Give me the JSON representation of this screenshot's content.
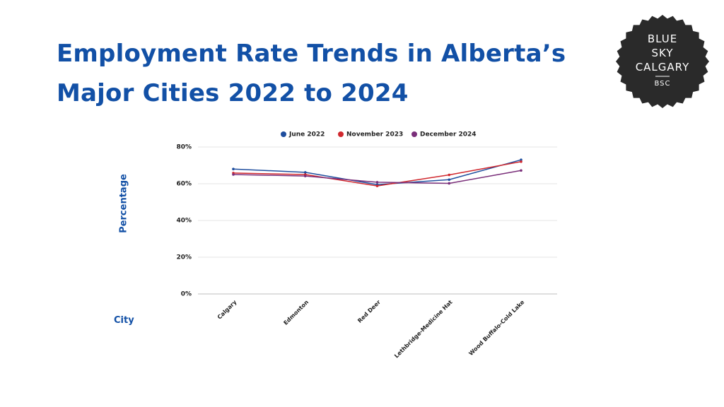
{
  "page": {
    "title": "Employment Rate Trends in Alberta’s\nMajor Cities 2022 to 2024"
  },
  "logo": {
    "line1": "BLUE",
    "line2": "SKY",
    "line3": "CALGARY",
    "line4": "BSC",
    "background_color": "#2a2a2a",
    "text_color": "#ffffff"
  },
  "colors": {
    "title": "#1250a6",
    "axis_title": "#1250a6",
    "grid": "#e6e6e6",
    "axis_line": "#bfbfbf"
  },
  "chart_data": {
    "type": "line",
    "title": "",
    "xlabel": "City",
    "ylabel": "Percentage",
    "categories": [
      "Calgary",
      "Edmonton",
      "Red Deer",
      "Lethbridge-Medicine Hat",
      "Wood Buffalo-Cold Lake"
    ],
    "yticks": [
      "0%",
      "20%",
      "40%",
      "60%",
      "80%"
    ],
    "ylim": [
      0,
      80
    ],
    "grid": true,
    "legend_position": "top",
    "series": [
      {
        "name": "June 2022",
        "color": "#1f4e9e",
        "values": [
          68,
          66.2,
          59.5,
          62.2,
          73
        ]
      },
      {
        "name": "November 2023",
        "color": "#d0282e",
        "values": [
          65.8,
          65,
          58.8,
          64.8,
          72
        ]
      },
      {
        "name": "December 2024",
        "color": "#7a2f7a",
        "values": [
          65,
          64.2,
          60.8,
          60.2,
          67.2
        ]
      }
    ]
  }
}
